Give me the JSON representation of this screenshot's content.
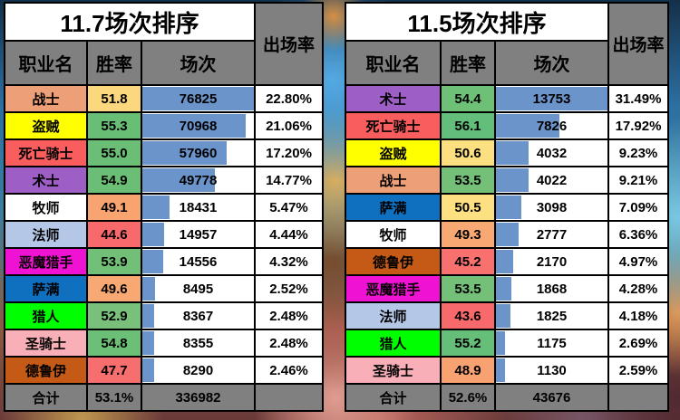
{
  "style": {
    "bar_color": "#6B94CB",
    "header_bg": "#808080",
    "title_bg": "#FFFFFF",
    "border_color": "#000000",
    "text_color": "#000000"
  },
  "chart_data": [
    {
      "type": "table",
      "title": "11.7场次排序",
      "columns": [
        "职业名",
        "胜率",
        "场次",
        "出场率"
      ],
      "rows": [
        {
          "class_name": "战士",
          "class_color": "#EDA078",
          "win_rate": "51.8",
          "win_color": "#FBD77E",
          "matches": "76825",
          "bar_frac": 1.0,
          "play_rate": "22.80%"
        },
        {
          "class_name": "盗贼",
          "class_color": "#FFFF00",
          "win_rate": "55.3",
          "win_color": "#68BE74",
          "matches": "70968",
          "bar_frac": 0.924,
          "play_rate": "21.06%"
        },
        {
          "class_name": "死亡骑士",
          "class_color": "#F95D5D",
          "win_rate": "55.0",
          "win_color": "#6ABE75",
          "matches": "57960",
          "bar_frac": 0.754,
          "play_rate": "17.20%"
        },
        {
          "class_name": "术士",
          "class_color": "#9D5EC6",
          "win_rate": "54.9",
          "win_color": "#6BBE75",
          "matches": "49778",
          "bar_frac": 0.648,
          "play_rate": "14.77%"
        },
        {
          "class_name": "牧师",
          "class_color": "#FFFFFF",
          "win_rate": "49.1",
          "win_color": "#F7A471",
          "matches": "18431",
          "bar_frac": 0.24,
          "play_rate": "5.47%"
        },
        {
          "class_name": "法师",
          "class_color": "#B4C7E7",
          "win_rate": "44.6",
          "win_color": "#F8696B",
          "matches": "14957",
          "bar_frac": 0.195,
          "play_rate": "4.44%"
        },
        {
          "class_name": "恶魔猎手",
          "class_color": "#F012D2",
          "win_rate": "53.9",
          "win_color": "#72C078",
          "matches": "14556",
          "bar_frac": 0.189,
          "play_rate": "4.32%"
        },
        {
          "class_name": "萨满",
          "class_color": "#1070C0",
          "win_rate": "49.6",
          "win_color": "#F7A873",
          "matches": "8495",
          "bar_frac": 0.111,
          "play_rate": "2.52%"
        },
        {
          "class_name": "猎人",
          "class_color": "#00FF00",
          "win_rate": "52.9",
          "win_color": "#79C17B",
          "matches": "8367",
          "bar_frac": 0.109,
          "play_rate": "2.48%"
        },
        {
          "class_name": "圣骑士",
          "class_color": "#F8AFB8",
          "win_rate": "54.8",
          "win_color": "#6CBF76",
          "matches": "8355",
          "bar_frac": 0.109,
          "play_rate": "2.48%"
        },
        {
          "class_name": "德鲁伊",
          "class_color": "#C45A15",
          "win_rate": "47.7",
          "win_color": "#F66E6D",
          "matches": "8290",
          "bar_frac": 0.108,
          "play_rate": "2.46%"
        }
      ],
      "total": {
        "label": "合计",
        "win_rate": "53.1%",
        "matches": "336982",
        "play_rate": ""
      }
    },
    {
      "type": "table",
      "title": "11.5场次排序",
      "columns": [
        "职业名",
        "胜率",
        "场次",
        "出场率"
      ],
      "rows": [
        {
          "class_name": "术士",
          "class_color": "#9D5EC6",
          "win_rate": "54.4",
          "win_color": "#6EC077",
          "matches": "13753",
          "bar_frac": 1.0,
          "play_rate": "31.49%"
        },
        {
          "class_name": "死亡骑士",
          "class_color": "#F95D5D",
          "win_rate": "56.1",
          "win_color": "#63BE7B",
          "matches": "7826",
          "bar_frac": 0.569,
          "play_rate": "17.92%"
        },
        {
          "class_name": "盗贼",
          "class_color": "#FFFF00",
          "win_rate": "50.6",
          "win_color": "#FCDF80",
          "matches": "4032",
          "bar_frac": 0.293,
          "play_rate": "9.23%"
        },
        {
          "class_name": "战士",
          "class_color": "#EDA078",
          "win_rate": "53.5",
          "win_color": "#75C079",
          "matches": "4022",
          "bar_frac": 0.292,
          "play_rate": "9.21%"
        },
        {
          "class_name": "萨满",
          "class_color": "#1070C0",
          "win_rate": "50.5",
          "win_color": "#FCE081",
          "matches": "3098",
          "bar_frac": 0.225,
          "play_rate": "7.09%"
        },
        {
          "class_name": "牧师",
          "class_color": "#FFFFFF",
          "win_rate": "49.3",
          "win_color": "#F8A873",
          "matches": "2777",
          "bar_frac": 0.202,
          "play_rate": "6.36%"
        },
        {
          "class_name": "德鲁伊",
          "class_color": "#C45A15",
          "win_rate": "45.2",
          "win_color": "#F8716E",
          "matches": "2170",
          "bar_frac": 0.158,
          "play_rate": "4.97%"
        },
        {
          "class_name": "恶魔猎手",
          "class_color": "#F012D2",
          "win_rate": "53.5",
          "win_color": "#75C079",
          "matches": "1868",
          "bar_frac": 0.136,
          "play_rate": "4.28%"
        },
        {
          "class_name": "法师",
          "class_color": "#B4C7E7",
          "win_rate": "43.6",
          "win_color": "#F8696B",
          "matches": "1825",
          "bar_frac": 0.133,
          "play_rate": "4.18%"
        },
        {
          "class_name": "猎人",
          "class_color": "#00FF00",
          "win_rate": "55.2",
          "win_color": "#66BF78",
          "matches": "1175",
          "bar_frac": 0.085,
          "play_rate": "2.69%"
        },
        {
          "class_name": "圣骑士",
          "class_color": "#F8AFB8",
          "win_rate": "48.9",
          "win_color": "#F8A171",
          "matches": "1130",
          "bar_frac": 0.082,
          "play_rate": "2.59%"
        }
      ],
      "total": {
        "label": "合计",
        "win_rate": "52.6%",
        "matches": "43676",
        "play_rate": ""
      }
    }
  ]
}
